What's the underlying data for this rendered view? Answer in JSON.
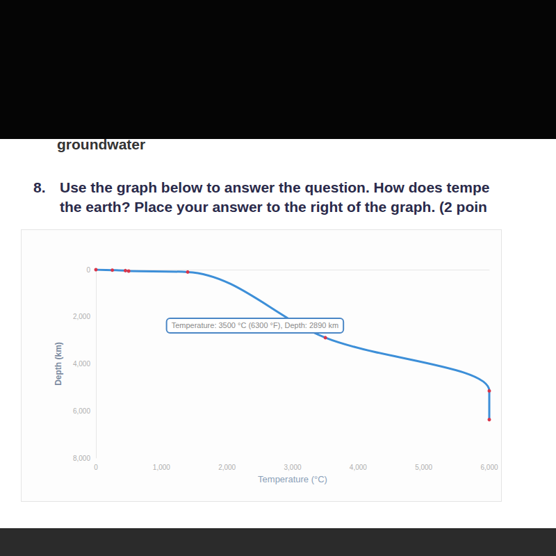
{
  "page": {
    "header": "groundwater",
    "question": {
      "number": "8.",
      "lines": [
        "Use the graph below to answer the question. How does tempe",
        "the earth? Place your answer to the right of the graph.  (2 poin"
      ]
    }
  },
  "chart_data": {
    "type": "line",
    "x_label": "Temperature (°C)",
    "y_label": "Depth (km)",
    "x": [
      0,
      250,
      450,
      500,
      1400,
      3500,
      6000,
      6000
    ],
    "values": [
      0,
      20,
      40,
      60,
      100,
      2890,
      5150,
      6370
    ],
    "color": "#3d8fd8",
    "marker": "circle",
    "xlim": [
      0,
      6000
    ],
    "xticks": [
      0,
      1000,
      2000,
      3000,
      4000,
      5000,
      6000
    ],
    "ylim": [
      0,
      8000
    ],
    "yticks": [
      0,
      2000,
      4000,
      6000,
      8000
    ],
    "grid": false,
    "annotations": [
      {
        "text": "Temperature: 3500 °C (6300 °F), Depth: 2890 km",
        "x": 3500,
        "y": 2890
      }
    ]
  }
}
